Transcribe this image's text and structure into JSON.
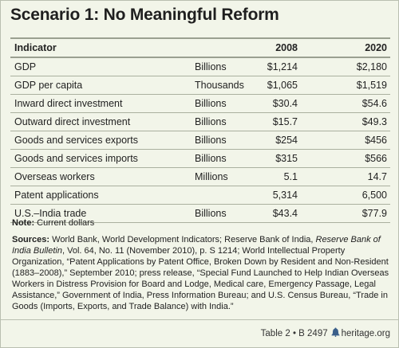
{
  "title": "Scenario 1: No Meaningful Reform",
  "columns": {
    "indicator": "Indicator",
    "unit": "",
    "year1": "2008",
    "year2": "2020"
  },
  "rows": [
    {
      "indicator": "GDP",
      "unit": "Billions",
      "v2008": "$1,214",
      "v2020": "$2,180"
    },
    {
      "indicator": "GDP per capita",
      "unit": "Thousands",
      "v2008": "$1,065",
      "v2020": "$1,519"
    },
    {
      "indicator": "Inward direct investment",
      "unit": "Billions",
      "v2008": "$30.4",
      "v2020": "$54.6"
    },
    {
      "indicator": "Outward direct investment",
      "unit": "Billions",
      "v2008": "$15.7",
      "v2020": "$49.3"
    },
    {
      "indicator": "Goods and services exports",
      "unit": "Billions",
      "v2008": "$254",
      "v2020": "$456"
    },
    {
      "indicator": "Goods and services imports",
      "unit": "Billions",
      "v2008": "$315",
      "v2020": "$566"
    },
    {
      "indicator": "Overseas workers",
      "unit": "Millions",
      "v2008": "5.1",
      "v2020": "14.7"
    },
    {
      "indicator": "Patent applications",
      "unit": "",
      "v2008": "5,314",
      "v2020": "6,500"
    },
    {
      "indicator": "U.S.–India trade",
      "unit": "Billions",
      "v2008": "$43.4",
      "v2020": "$77.9"
    }
  ],
  "note": {
    "label": "Note:",
    "text": " Current dollars"
  },
  "sources": {
    "label": "Sources:",
    "part1": " World Bank, World Development Indicators; Reserve Bank of India, ",
    "italic1": "Reserve Bank of India Bulletin",
    "part2": ", Vol. 64, No. 11 (November 2010), p. S 1214; World Intellectual Property Organization, “Patent Applications by Patent Office, Broken Down by Resident and Non-Resident (1883–2008),” September 2010; press release, “Special Fund Launched to Help Indian Overseas Workers in Distress Provision for Board and Lodge, Medical care, Emergency Passage, Legal Assistance,” Government of India, Press Information Bureau; and U.S. Census Bureau, “Trade in Goods (Imports, Exports, and Trade Balance) with India.”"
  },
  "footer": {
    "table_ref": "Table 2",
    "separator": " • ",
    "doc_ref": "B 2497",
    "site": "heritage.org",
    "icon": "liberty-bell-icon",
    "icon_color": "#3a5f8a"
  }
}
